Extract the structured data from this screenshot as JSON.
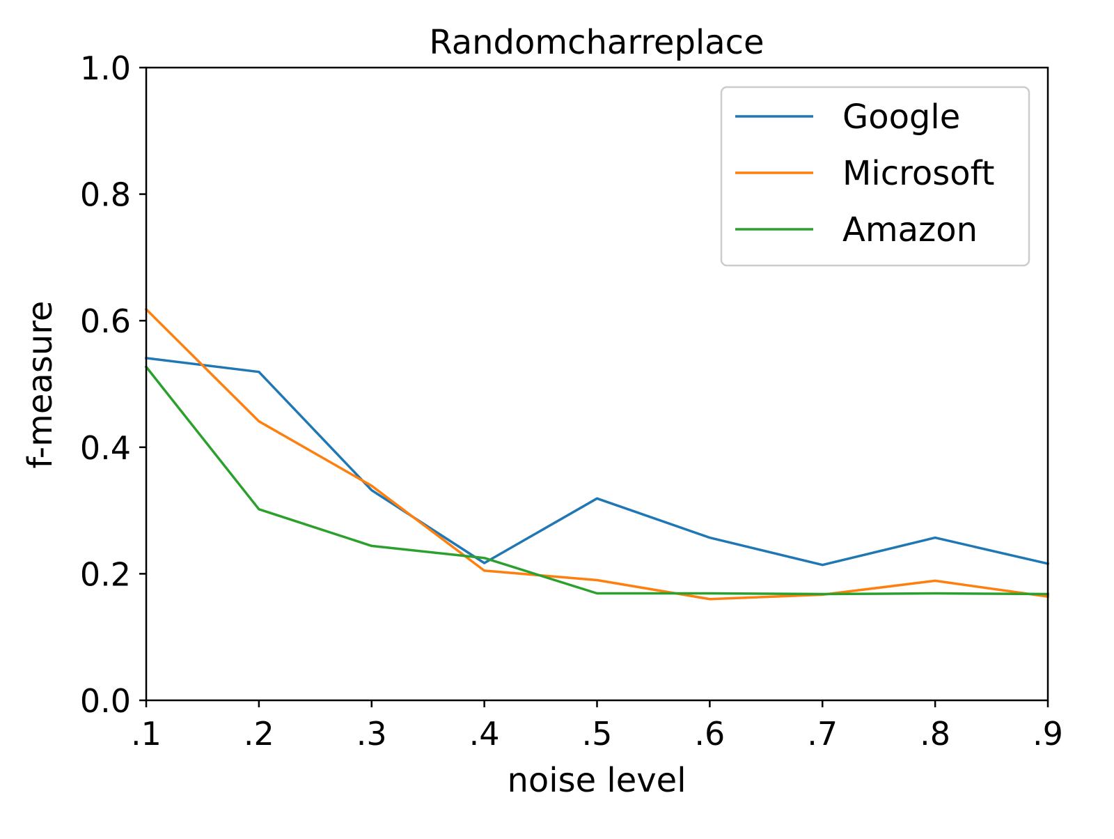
{
  "chart_data": {
    "type": "line",
    "title": "Randomcharreplace",
    "xlabel": "noise level",
    "ylabel": "f-measure",
    "categories": [
      ".1",
      ".2",
      ".3",
      ".4",
      ".5",
      ".6",
      ".7",
      ".8",
      ".9"
    ],
    "x": [
      0.1,
      0.2,
      0.3,
      0.4,
      0.5,
      0.6,
      0.7,
      0.8,
      0.9
    ],
    "xlim": [
      0.1,
      0.9
    ],
    "ylim": [
      0.0,
      1.0
    ],
    "yticks": [
      "0.0",
      "0.2",
      "0.4",
      "0.6",
      "0.8",
      "1.0"
    ],
    "ytick_values": [
      0.0,
      0.2,
      0.4,
      0.6,
      0.8,
      1.0
    ],
    "grid": false,
    "legend_position": "top-right",
    "series": [
      {
        "name": "Google",
        "color": "#1f77b4",
        "values": [
          0.541,
          0.519,
          0.332,
          0.217,
          0.319,
          0.257,
          0.214,
          0.257,
          0.216
        ]
      },
      {
        "name": "Microsoft",
        "color": "#ff7f0e",
        "values": [
          0.618,
          0.441,
          0.339,
          0.205,
          0.19,
          0.16,
          0.167,
          0.189,
          0.164
        ]
      },
      {
        "name": "Amazon",
        "color": "#2ca02c",
        "values": [
          0.527,
          0.302,
          0.244,
          0.225,
          0.169,
          0.169,
          0.168,
          0.169,
          0.168
        ]
      }
    ]
  }
}
